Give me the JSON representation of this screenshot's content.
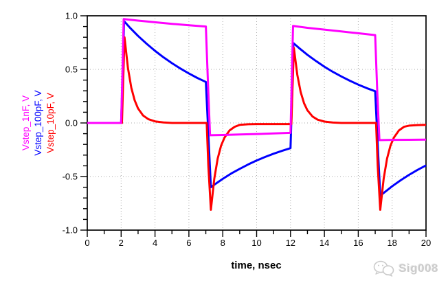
{
  "watermark": {
    "text": "Sig008",
    "color": "#cbcbcb"
  },
  "chart_data": {
    "type": "line",
    "title": "",
    "xlabel": "time, nsec",
    "x_range": [
      0,
      20
    ],
    "y_range": [
      -1.0,
      1.0
    ],
    "x_major_step": 2,
    "x_minor_step": 1,
    "y_major_step": 0.5,
    "y_minor_step": 0.1,
    "x_tick_labels": [
      "0",
      "2",
      "4",
      "6",
      "8",
      "10",
      "12",
      "14",
      "16",
      "18",
      "20"
    ],
    "y_tick_labels": [
      "1.0",
      "0.5",
      "0.0",
      "-0.5",
      "-1.0"
    ],
    "grid": {
      "style": "dotted",
      "color": "#a9a9a9",
      "x_lines": [
        2,
        4,
        6,
        8,
        10,
        12,
        14,
        16,
        18
      ],
      "y_lines": [
        0.5,
        0.0,
        -0.5
      ]
    },
    "legend_position": "left-rotated",
    "series": [
      {
        "name": "Vstep_1nF, V",
        "color": "#ff00ff",
        "z": 3,
        "points": [
          [
            0,
            0
          ],
          [
            2,
            0
          ],
          [
            2.08,
            0.5
          ],
          [
            2.15,
            0.97
          ],
          [
            3,
            0.955
          ],
          [
            4,
            0.94
          ],
          [
            5,
            0.925
          ],
          [
            6,
            0.912
          ],
          [
            7,
            0.9
          ],
          [
            7.12,
            0.4
          ],
          [
            7.25,
            -0.115
          ],
          [
            8,
            -0.112
          ],
          [
            9,
            -0.108
          ],
          [
            10,
            -0.103
          ],
          [
            11,
            -0.098
          ],
          [
            12,
            -0.092
          ],
          [
            12.08,
            0.45
          ],
          [
            12.15,
            0.905
          ],
          [
            13,
            0.888
          ],
          [
            14,
            0.871
          ],
          [
            15,
            0.854
          ],
          [
            16,
            0.837
          ],
          [
            17,
            0.82
          ],
          [
            17.12,
            0.3
          ],
          [
            17.25,
            -0.16
          ],
          [
            18,
            -0.158
          ],
          [
            19,
            -0.157
          ],
          [
            20,
            -0.155
          ]
        ]
      },
      {
        "name": "Vstep_100pF, V",
        "color": "#0000ff",
        "z": 1,
        "points": [
          [
            0,
            0
          ],
          [
            2,
            0
          ],
          [
            2.1,
            0.5
          ],
          [
            2.17,
            0.95
          ],
          [
            2.5,
            0.892
          ],
          [
            3,
            0.812
          ],
          [
            3.5,
            0.74
          ],
          [
            4,
            0.673
          ],
          [
            4.5,
            0.613
          ],
          [
            5,
            0.558
          ],
          [
            5.5,
            0.508
          ],
          [
            6,
            0.462
          ],
          [
            6.5,
            0.42
          ],
          [
            7,
            0.383
          ],
          [
            7.15,
            -0.1
          ],
          [
            7.3,
            -0.6
          ],
          [
            7.5,
            -0.576
          ],
          [
            8,
            -0.522
          ],
          [
            8.5,
            -0.472
          ],
          [
            9,
            -0.428
          ],
          [
            9.5,
            -0.387
          ],
          [
            10,
            -0.35
          ],
          [
            10.5,
            -0.317
          ],
          [
            11,
            -0.287
          ],
          [
            11.5,
            -0.26
          ],
          [
            12,
            -0.235
          ],
          [
            12.1,
            0.3
          ],
          [
            12.17,
            0.745
          ],
          [
            12.5,
            0.7
          ],
          [
            13,
            0.636
          ],
          [
            13.5,
            0.578
          ],
          [
            14,
            0.525
          ],
          [
            14.5,
            0.477
          ],
          [
            15,
            0.434
          ],
          [
            15.5,
            0.394
          ],
          [
            16,
            0.358
          ],
          [
            16.5,
            0.325
          ],
          [
            17,
            0.296
          ],
          [
            17.15,
            -0.2
          ],
          [
            17.3,
            -0.68
          ],
          [
            17.5,
            -0.653
          ],
          [
            18,
            -0.591
          ],
          [
            18.5,
            -0.535
          ],
          [
            19,
            -0.484
          ],
          [
            19.5,
            -0.438
          ],
          [
            20,
            -0.396
          ]
        ]
      },
      {
        "name": "Vstep_10pF, V",
        "color": "#ff0000",
        "z": 2,
        "points": [
          [
            0,
            0
          ],
          [
            2.05,
            0
          ],
          [
            2.12,
            0.4
          ],
          [
            2.2,
            0.8
          ],
          [
            2.4,
            0.513
          ],
          [
            2.6,
            0.329
          ],
          [
            2.8,
            0.211
          ],
          [
            3,
            0.135
          ],
          [
            3.3,
            0.069
          ],
          [
            3.6,
            0.036
          ],
          [
            4,
            0.015
          ],
          [
            4.5,
            0.005
          ],
          [
            5,
            0
          ],
          [
            7.05,
            0
          ],
          [
            7.15,
            -0.4
          ],
          [
            7.3,
            -0.81
          ],
          [
            7.5,
            -0.519
          ],
          [
            7.7,
            -0.333
          ],
          [
            7.9,
            -0.213
          ],
          [
            8.1,
            -0.137
          ],
          [
            8.4,
            -0.07
          ],
          [
            8.7,
            -0.036
          ],
          [
            9,
            -0.018
          ],
          [
            9.5,
            -0.012
          ],
          [
            10,
            -0.01
          ],
          [
            12.05,
            -0.01
          ],
          [
            12.12,
            0.35
          ],
          [
            12.2,
            0.7
          ],
          [
            12.4,
            0.449
          ],
          [
            12.6,
            0.288
          ],
          [
            12.8,
            0.184
          ],
          [
            13,
            0.118
          ],
          [
            13.3,
            0.06
          ],
          [
            13.6,
            0.031
          ],
          [
            14,
            0.013
          ],
          [
            14.5,
            0.004
          ],
          [
            15,
            0
          ],
          [
            17.05,
            0
          ],
          [
            17.15,
            -0.4
          ],
          [
            17.3,
            -0.81
          ],
          [
            17.5,
            -0.519
          ],
          [
            17.7,
            -0.333
          ],
          [
            17.9,
            -0.213
          ],
          [
            18.1,
            -0.137
          ],
          [
            18.4,
            -0.07
          ],
          [
            18.7,
            -0.036
          ],
          [
            19,
            -0.025
          ],
          [
            19.5,
            -0.02
          ],
          [
            20,
            -0.018
          ]
        ]
      }
    ]
  }
}
